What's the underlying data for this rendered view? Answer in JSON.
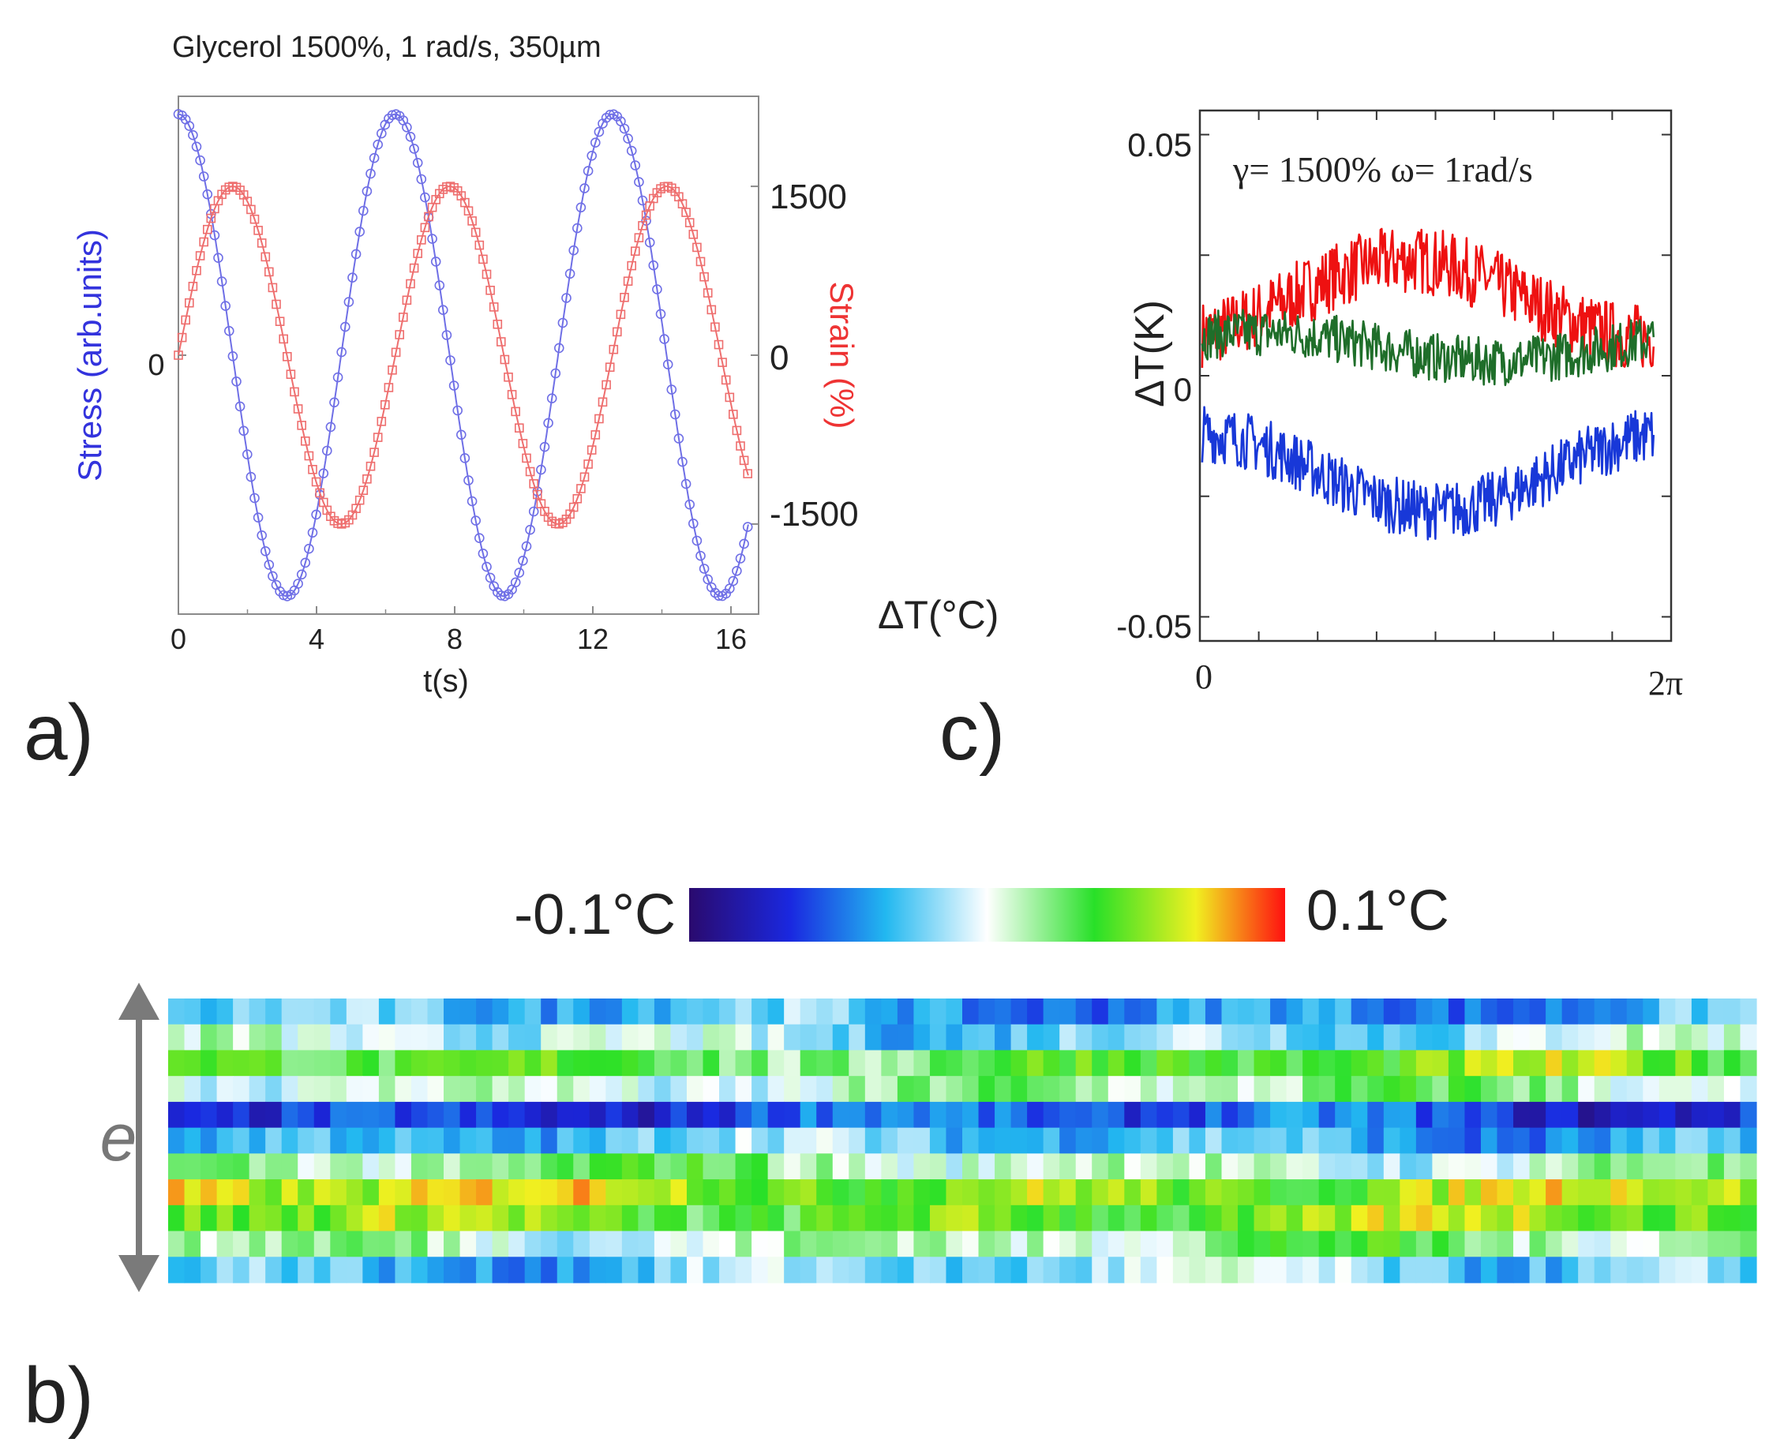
{
  "panel_labels": {
    "a": "a)",
    "b": "b)",
    "c": "c)"
  },
  "colors": {
    "stress": "#6f6fe6",
    "strain": "#ee6e6e",
    "series_red": "#ee1111",
    "series_green": "#1f6e2a",
    "series_blue": "#1838d8",
    "arrow": "#7a7a7a"
  },
  "chart_data": [
    {
      "id": "a",
      "type": "line",
      "title": "Glycerol 1500%, 1 rad/s, 350µm",
      "xlabel": "t(s)",
      "ylabel_left": "Stress (arb.units)",
      "ylabel_right": "Strain (%)",
      "xlim": [
        0,
        16.8
      ],
      "xticks": [
        0,
        4,
        8,
        12,
        16
      ],
      "xtick_labels": [
        "0",
        "4",
        "8",
        "12",
        "16"
      ],
      "ylim_left": [
        -1.45,
        1.45
      ],
      "yticks_left": [
        0
      ],
      "ytick_labels_left": [
        "0"
      ],
      "ylim_right": [
        -2300,
        2300
      ],
      "yticks_right": [
        1500,
        0,
        -1500
      ],
      "ytick_labels_right": [
        "1500",
        "0",
        "-1500"
      ],
      "series": [
        {
          "name": "Stress",
          "axis": "left",
          "marker": "circle",
          "function": "cos(t)",
          "amplitude": 1.35,
          "period_s": 6.283,
          "t_end": 16.5
        },
        {
          "name": "Strain",
          "axis": "right",
          "marker": "square",
          "function": "sin(t)",
          "amplitude": 1500,
          "period_s": 6.283,
          "t_end": 16.5
        }
      ],
      "extra_label": "ΔT(°C)"
    },
    {
      "id": "c",
      "type": "line",
      "annotation": "γ= 1500%  ω= 1rad/s",
      "ylabel": "ΔT(K)",
      "xlim": [
        0,
        6.2832
      ],
      "xtick_labels": [
        "0",
        "2π"
      ],
      "ylim": [
        -0.055,
        0.055
      ],
      "ytick_labels": [
        "0.05",
        "0",
        "-0.05"
      ],
      "series": [
        {
          "name": "red",
          "color": "#ee1111",
          "mean": 0.016,
          "amplitude": 0.008,
          "phase": -1.2,
          "noise": 0.007
        },
        {
          "name": "green",
          "color": "#1f6e2a",
          "mean": 0.006,
          "amplitude": 0.003,
          "phase": 0.8,
          "noise": 0.005
        },
        {
          "name": "blue",
          "color": "#1838d8",
          "mean": -0.02,
          "amplitude": 0.008,
          "phase": 1.57,
          "noise": 0.006
        }
      ]
    },
    {
      "id": "b",
      "type": "heatmap",
      "colorbar_min_label": "-0.1°C",
      "colorbar_max_label": "0.1°C",
      "vmin": -0.1,
      "vmax": 0.1,
      "axis_label": "e",
      "colormap": [
        "#2a0a6e",
        "#1a28e0",
        "#22b8f0",
        "#ffffff",
        "#28e028",
        "#f0f020",
        "#ff1010"
      ],
      "band_means": [
        -0.035,
        -0.012,
        0.035,
        0.008,
        -0.06,
        -0.03,
        0.01,
        0.055,
        0.045,
        0.012,
        -0.022
      ],
      "columns": 98
    }
  ]
}
